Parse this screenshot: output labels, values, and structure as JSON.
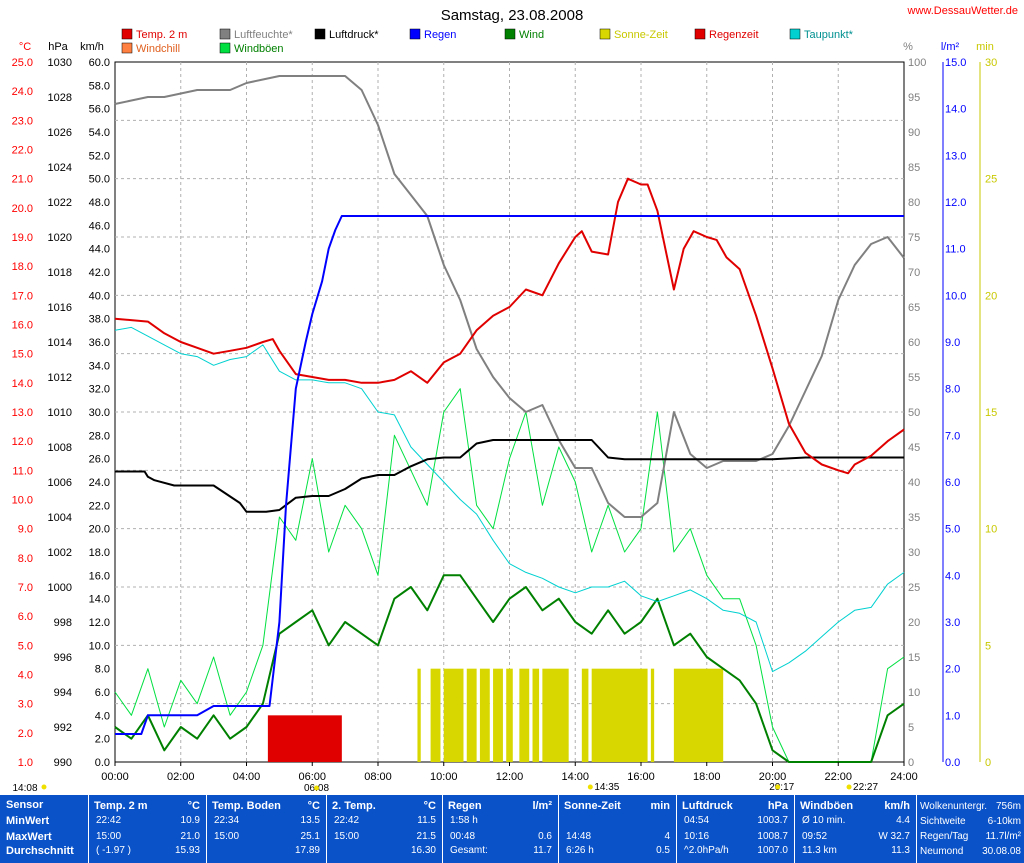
{
  "page": {
    "title": "Samstag, 23.08.2008",
    "site": "www.DessauWetter.de"
  },
  "chart_data": {
    "type": "line",
    "title": "Samstag, 23.08.2008",
    "x_ticks": [
      "00:00",
      "02:00",
      "04:00",
      "06:00",
      "08:00",
      "10:00",
      "12:00",
      "14:00",
      "16:00",
      "18:00",
      "20:00",
      "22:00",
      "24:00"
    ],
    "xlim": [
      0,
      24
    ],
    "grid": true,
    "legend": "top",
    "legend_items": [
      {
        "label": "Temp. 2 m",
        "color": "#e00000"
      },
      {
        "label": "Windchill",
        "color": "#ff8040"
      },
      {
        "label": "Luftfeuchte*",
        "color": "#808080"
      },
      {
        "label": "Windböen",
        "color": "#00e040"
      },
      {
        "label": "Luftdruck*",
        "color": "#000000"
      },
      {
        "label": "Regen",
        "color": "#0000ff"
      },
      {
        "label": "Wind",
        "color": "#008000"
      },
      {
        "label": "Sonne-Zeit",
        "color": "#d8d800"
      },
      {
        "label": "Regenzeit",
        "color": "#e00000"
      },
      {
        "label": "Taupunkt*",
        "color": "#00d0d0"
      }
    ],
    "axes": {
      "temp": {
        "unit": "°C",
        "color": "#ff0000",
        "range": [
          1.0,
          25.0
        ],
        "ticks": [
          "25.0",
          "24.0",
          "23.0",
          "22.0",
          "21.0",
          "20.0",
          "19.0",
          "18.0",
          "17.0",
          "16.0",
          "15.0",
          "14.0",
          "13.0",
          "12.0",
          "11.0",
          "10.0",
          "9.0",
          "8.0",
          "7.0",
          "6.0",
          "5.0",
          "4.0",
          "3.0",
          "2.0",
          "1.0"
        ]
      },
      "pressure": {
        "unit": "hPa",
        "color": "#000000",
        "range": [
          990,
          1030
        ],
        "ticks": [
          "1030",
          "1028",
          "1026",
          "1024",
          "1022",
          "1020",
          "1018",
          "1016",
          "1014",
          "1012",
          "1010",
          "1008",
          "1006",
          "1004",
          "1002",
          "1000",
          "998",
          "996",
          "994",
          "992",
          "990"
        ]
      },
      "wind": {
        "unit": "km/h",
        "color": "#000000",
        "range": [
          0.0,
          60.0
        ],
        "ticks": [
          "60.0",
          "58.0",
          "56.0",
          "54.0",
          "52.0",
          "50.0",
          "48.0",
          "46.0",
          "44.0",
          "42.0",
          "40.0",
          "38.0",
          "36.0",
          "34.0",
          "32.0",
          "30.0",
          "28.0",
          "26.0",
          "24.0",
          "22.0",
          "20.0",
          "18.0",
          "16.0",
          "14.0",
          "12.0",
          "10.0",
          "8.0",
          "6.0",
          "4.0",
          "2.0",
          "0.0"
        ]
      },
      "humidity": {
        "unit": "%",
        "color": "#808080",
        "range": [
          0,
          100
        ],
        "ticks": [
          "100",
          "95",
          "90",
          "85",
          "80",
          "75",
          "70",
          "65",
          "60",
          "55",
          "50",
          "45",
          "40",
          "35",
          "30",
          "25",
          "20",
          "15",
          "10",
          "5",
          "0"
        ]
      },
      "rain": {
        "unit": "l/m²",
        "color": "#0000ff",
        "range": [
          0.0,
          15.0
        ],
        "ticks": [
          "15.0",
          "14.0",
          "13.0",
          "12.0",
          "11.0",
          "10.0",
          "9.0",
          "8.0",
          "7.0",
          "6.0",
          "5.0",
          "4.0",
          "3.0",
          "2.0",
          "1.0",
          "0.0"
        ]
      },
      "sun": {
        "unit": "min",
        "color": "#c8c800",
        "range": [
          0,
          30
        ],
        "ticks": [
          "30",
          "25",
          "20",
          "15",
          "10",
          "5",
          "0"
        ]
      }
    },
    "series": [
      {
        "name": "Temp. 2 m",
        "axis": "temp",
        "color": "#e00000",
        "x": [
          0,
          1,
          1.5,
          2,
          2.5,
          3,
          3.5,
          4,
          4.5,
          4.8,
          5,
          5.5,
          6,
          6.5,
          7,
          7.5,
          8,
          8.5,
          9,
          9.5,
          10,
          10.5,
          11,
          11.5,
          12,
          12.5,
          13,
          13.5,
          14,
          14.2,
          14.5,
          15,
          15.3,
          15.6,
          16,
          16.2,
          16.5,
          17,
          17.3,
          17.6,
          18,
          18.3,
          18.6,
          19,
          19.5,
          20,
          20.5,
          21,
          21.5,
          22,
          22.3,
          22.5,
          23,
          23.5,
          24
        ],
        "y": [
          16.2,
          16.1,
          15.7,
          15.4,
          15.2,
          15.0,
          15.1,
          15.2,
          15.4,
          15.5,
          15.1,
          14.3,
          14.2,
          14.1,
          14.1,
          14.0,
          14.0,
          14.1,
          14.4,
          14.0,
          14.7,
          15.0,
          15.8,
          16.3,
          16.6,
          17.2,
          17.0,
          18.1,
          19.0,
          19.2,
          18.5,
          18.4,
          20.2,
          21.0,
          20.8,
          20.8,
          19.9,
          17.2,
          18.6,
          19.2,
          19.0,
          18.9,
          18.3,
          17.9,
          16.3,
          14.5,
          12.6,
          11.6,
          11.2,
          11.0,
          10.9,
          11.2,
          11.5,
          12.0,
          12.4
        ]
      },
      {
        "name": "Taupunkt*",
        "axis": "temp",
        "color": "#00d0d0",
        "x": [
          0,
          0.5,
          1,
          1.5,
          2,
          2.5,
          3,
          3.5,
          4,
          4.5,
          5,
          5.5,
          6,
          6.5,
          7,
          7.5,
          8,
          8.5,
          9,
          9.5,
          10,
          10.5,
          11,
          11.5,
          12,
          12.5,
          13,
          13.5,
          14,
          14.5,
          15,
          15.5,
          16,
          16.5,
          17,
          17.5,
          18,
          18.5,
          19,
          19.5,
          20,
          20.5,
          21,
          21.5,
          22,
          22.5,
          23,
          23.5,
          24
        ],
        "y": [
          15.8,
          15.9,
          15.6,
          15.3,
          15.0,
          14.9,
          14.6,
          14.8,
          14.9,
          15.3,
          14.4,
          14.1,
          14.1,
          14.0,
          14.0,
          13.8,
          13.0,
          12.9,
          11.8,
          11.2,
          10.6,
          10.0,
          9.5,
          8.6,
          7.8,
          7.5,
          7.3,
          7.0,
          6.8,
          7.0,
          7.0,
          7.2,
          6.7,
          6.5,
          6.7,
          6.9,
          6.6,
          6.2,
          6.1,
          5.8,
          4.1,
          4.4,
          4.8,
          5.3,
          5.8,
          6.2,
          6.3,
          7.1,
          7.5
        ]
      },
      {
        "name": "Luftfeuchte*",
        "axis": "humidity",
        "color": "#808080",
        "x": [
          0,
          0.5,
          1,
          1.5,
          2,
          2.5,
          3,
          3.5,
          4,
          4.5,
          5,
          5.5,
          6,
          6.5,
          7,
          7.5,
          8,
          8.5,
          9,
          9.5,
          10,
          10.5,
          11,
          11.5,
          12,
          12.5,
          13,
          13.5,
          14,
          14.5,
          15,
          15.5,
          16,
          16.5,
          17,
          17.5,
          18,
          18.5,
          19,
          19.5,
          20,
          20.5,
          21,
          21.5,
          22,
          22.5,
          23,
          23.5,
          24
        ],
        "y": [
          94,
          94.5,
          95,
          95,
          95.5,
          96,
          96,
          96,
          97,
          97.5,
          98,
          98,
          98,
          98,
          98,
          96,
          91,
          84,
          81,
          78,
          71,
          66,
          59,
          55,
          52,
          50,
          51,
          46,
          42,
          42,
          37,
          35,
          35,
          37,
          50,
          44,
          42,
          43,
          43,
          43,
          44,
          48,
          53,
          58,
          66,
          71,
          74,
          75,
          72
        ]
      },
      {
        "name": "Luftdruck*",
        "axis": "pressure",
        "color": "#000000",
        "x": [
          0,
          0.9,
          1,
          1.2,
          1.8,
          2.5,
          3,
          3.8,
          4,
          4.6,
          5,
          5.5,
          6,
          6.5,
          7,
          7.5,
          8,
          8.5,
          9,
          9.5,
          10,
          10.5,
          11,
          11.5,
          12,
          12.5,
          13,
          13.5,
          14,
          14.5,
          15,
          15.5,
          16,
          17,
          18,
          19,
          20,
          21,
          22,
          23,
          24
        ],
        "y": [
          1006.6,
          1006.6,
          1006.3,
          1006.1,
          1005.8,
          1005.8,
          1005.8,
          1004.8,
          1004.3,
          1004.3,
          1004.4,
          1005.1,
          1005.2,
          1005.2,
          1005.6,
          1006.2,
          1006.4,
          1006.4,
          1006.9,
          1007.3,
          1007.4,
          1007.4,
          1008.2,
          1008.4,
          1008.4,
          1008.4,
          1008.4,
          1008.4,
          1008.4,
          1008.4,
          1007.4,
          1007.3,
          1007.3,
          1007.3,
          1007.3,
          1007.3,
          1007.3,
          1007.4,
          1007.4,
          1007.4,
          1007.4
        ]
      },
      {
        "name": "Regen",
        "axis": "rain",
        "color": "#0000ff",
        "x": [
          0,
          0.8,
          1,
          1.5,
          2,
          2.5,
          3,
          3.5,
          4,
          4.5,
          4.7,
          5,
          5.2,
          5.5,
          5.8,
          6,
          6.3,
          6.5,
          6.7,
          6.9,
          7,
          8,
          10,
          12,
          14,
          16,
          18,
          20,
          22,
          24
        ],
        "y": [
          0.6,
          0.6,
          1.0,
          1.0,
          1.0,
          1.0,
          1.2,
          1.2,
          1.2,
          1.2,
          1.2,
          3.0,
          5.5,
          8.0,
          9.0,
          9.6,
          10.3,
          11.0,
          11.4,
          11.7,
          11.7,
          11.7,
          11.7,
          11.7,
          11.7,
          11.7,
          11.7,
          11.7,
          11.7,
          11.7
        ]
      },
      {
        "name": "Windböen",
        "axis": "wind",
        "color": "#00e040",
        "x": [
          0,
          0.5,
          1,
          1.5,
          2,
          2.5,
          3,
          3.5,
          4,
          4.5,
          5,
          5.5,
          6,
          6.5,
          7,
          7.5,
          8,
          8.5,
          9,
          9.5,
          10,
          10.5,
          11,
          11.5,
          12,
          12.5,
          13,
          13.5,
          14,
          14.5,
          15,
          15.5,
          16,
          16.5,
          17,
          17.5,
          18,
          18.5,
          19,
          19.5,
          20,
          20.5,
          21,
          21.5,
          22,
          22.5,
          23,
          23.5,
          24
        ],
        "y": [
          6,
          4,
          8,
          3,
          7,
          5,
          9,
          4,
          6,
          10,
          21,
          19,
          26,
          18,
          22,
          20,
          16,
          28,
          25,
          22,
          30,
          32,
          22,
          20,
          26,
          30,
          22,
          27,
          24,
          18,
          22,
          18,
          20,
          30,
          18,
          20,
          16,
          14,
          14,
          10,
          3,
          0,
          0,
          0,
          0,
          0,
          0,
          8,
          9
        ]
      },
      {
        "name": "Wind",
        "axis": "wind",
        "color": "#008000",
        "x": [
          0,
          0.5,
          1,
          1.5,
          2,
          2.5,
          3,
          3.5,
          4,
          4.5,
          5,
          5.5,
          6,
          6.5,
          7,
          7.5,
          8,
          8.5,
          9,
          9.5,
          10,
          10.5,
          11,
          11.5,
          12,
          12.5,
          13,
          13.5,
          14,
          14.5,
          15,
          15.5,
          16,
          16.5,
          17,
          17.5,
          18,
          18.5,
          19,
          19.5,
          20,
          20.5,
          21,
          21.5,
          22,
          22.5,
          23,
          23.5,
          24
        ],
        "y": [
          3,
          2,
          4,
          1,
          3,
          2,
          4,
          2,
          3,
          5,
          11,
          12,
          13,
          10,
          12,
          11,
          10,
          14,
          15,
          13,
          16,
          16,
          14,
          12,
          14,
          15,
          13,
          14,
          12,
          11,
          13,
          11,
          12,
          14,
          10,
          11,
          9,
          8,
          7,
          5,
          1,
          0,
          0,
          0,
          0,
          0,
          0,
          4,
          5
        ]
      }
    ],
    "bars": [
      {
        "name": "Sonne-Zeit",
        "axis": "sun",
        "color": "#d8d800",
        "segments": [
          [
            9.2,
            9.3
          ],
          [
            9.6,
            9.9
          ],
          [
            10.0,
            10.6
          ],
          [
            10.7,
            11.0
          ],
          [
            11.1,
            11.4
          ],
          [
            11.5,
            11.8
          ],
          [
            11.9,
            12.1
          ],
          [
            12.3,
            12.6
          ],
          [
            12.7,
            12.9
          ],
          [
            13.0,
            13.8
          ],
          [
            14.2,
            14.4
          ],
          [
            14.5,
            16.2
          ],
          [
            16.3,
            16.4
          ],
          [
            17.0,
            18.5
          ]
        ],
        "value": 4
      },
      {
        "name": "Regenzeit",
        "axis": "rain",
        "color": "#e00000",
        "segments": [
          [
            4.65,
            6.9
          ]
        ],
        "value": 1.0
      }
    ],
    "x_markers": [
      {
        "label": "14:08",
        "time": 0
      },
      {
        "label": "06:08",
        "time": 6.13
      },
      {
        "label": "14:35",
        "time": 14.58
      },
      {
        "label": "20:17",
        "time": 20.28
      },
      {
        "label": "22:27",
        "time": 22.45
      }
    ]
  },
  "stats": {
    "row_labels": [
      "Sensor",
      "MinWert",
      "MaxWert",
      "Durchschnitt"
    ],
    "columns": [
      {
        "title": "Temp. 2 m",
        "unit": "°C",
        "rows": [
          [
            "22:42",
            "10.9"
          ],
          [
            "15:00",
            "21.0"
          ],
          [
            "( -1.97 )",
            "15.93"
          ]
        ]
      },
      {
        "title": "Temp. Boden",
        "unit": "°C",
        "rows": [
          [
            "22:34",
            "13.5"
          ],
          [
            "15:00",
            "25.1"
          ],
          [
            "",
            "17.89"
          ]
        ]
      },
      {
        "title": "2. Temp.",
        "unit": "°C",
        "rows": [
          [
            "22:42",
            "11.5"
          ],
          [
            "15:00",
            "21.5"
          ],
          [
            "",
            "16.30"
          ]
        ]
      },
      {
        "title": "Regen",
        "unit": "l/m²",
        "rows": [
          [
            "1:58 h",
            ""
          ],
          [
            "00:48",
            "0.6"
          ],
          [
            "Gesamt:",
            "11.7"
          ]
        ]
      },
      {
        "title": "Sonne-Zeit",
        "unit": "min",
        "rows": [
          [
            "",
            ""
          ],
          [
            "14:48",
            "4"
          ],
          [
            "6:26 h",
            "0.5"
          ]
        ]
      },
      {
        "title": "Luftdruck",
        "unit": "hPa",
        "rows": [
          [
            "04:54",
            "1003.7"
          ],
          [
            "10:16",
            "1008.7"
          ],
          [
            "^2.0hPa/h",
            "1007.0"
          ]
        ]
      },
      {
        "title": "Windböen",
        "unit": "km/h",
        "rows": [
          [
            "Ø 10 min.",
            "4.4"
          ],
          [
            "09:52",
            "W 32.7"
          ],
          [
            "11.3 km",
            "11.3"
          ]
        ]
      }
    ],
    "extra": [
      [
        "Wolkenuntergr.",
        "756m"
      ],
      [
        "Sichtweite",
        "6-10km"
      ],
      [
        "Regen/Tag",
        "11.7l/m²"
      ],
      [
        "Neumond",
        "30.08.08"
      ]
    ]
  }
}
